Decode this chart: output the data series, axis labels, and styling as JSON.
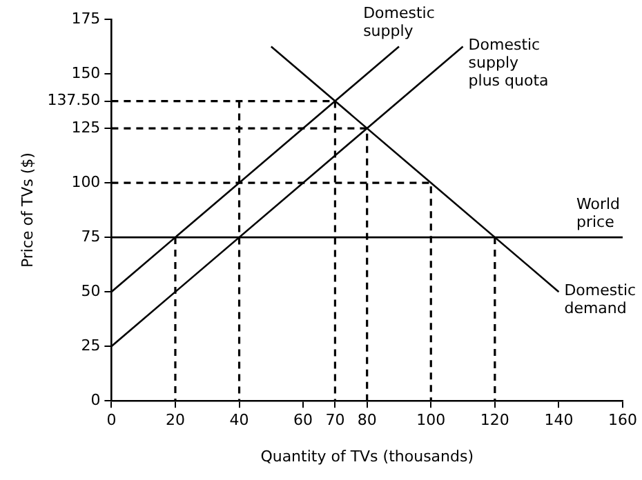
{
  "chart_data": {
    "type": "line",
    "xlabel": "Quantity of TVs (thousands)",
    "ylabel": "Price of TVs ($)",
    "xlim": [
      0,
      160
    ],
    "xticks": [
      0,
      20,
      40,
      60,
      70,
      80,
      100,
      120,
      140,
      160
    ],
    "ylim": [
      0,
      175
    ],
    "yticks": [
      0,
      25,
      50,
      75,
      100,
      125,
      {
        "value": 137.5,
        "label": "137.50"
      },
      150,
      175
    ],
    "grid": false,
    "legend": false,
    "marker": "none",
    "series": [
      {
        "name": "Domestic supply",
        "color": "#000000",
        "x": [
          0,
          90
        ],
        "values": [
          50,
          162.5
        ]
      },
      {
        "name": "Domestic supply plus quota",
        "color": "#000000",
        "x": [
          0,
          110
        ],
        "values": [
          25,
          162.5
        ]
      },
      {
        "name": "Domestic demand",
        "color": "#000000",
        "x": [
          50,
          140
        ],
        "values": [
          162.5,
          50
        ]
      },
      {
        "name": "World price",
        "color": "#000000",
        "x": [
          0,
          160
        ],
        "values": [
          75,
          75
        ]
      },
      {
        "color": "#000000",
        "line_style": "dashed",
        "x": [
          0,
          70,
          70
        ],
        "values": [
          137.5,
          137.5,
          0
        ]
      },
      {
        "color": "#000000",
        "line_style": "dashed",
        "x": [
          0,
          80,
          80
        ],
        "values": [
          125,
          125,
          0
        ]
      },
      {
        "color": "#000000",
        "line_style": "dashed",
        "x": [
          0,
          100,
          100
        ],
        "values": [
          100,
          100,
          0
        ]
      },
      {
        "color": "#000000",
        "line_style": "dashed",
        "x": [
          40,
          40
        ],
        "values": [
          137.5,
          0
        ]
      },
      {
        "color": "#000000",
        "line_style": "dashed",
        "x": [
          20,
          20
        ],
        "values": [
          75,
          0
        ]
      },
      {
        "color": "#000000",
        "line_style": "dashed",
        "x": [
          120,
          120
        ],
        "values": [
          75,
          0
        ]
      }
    ]
  }
}
